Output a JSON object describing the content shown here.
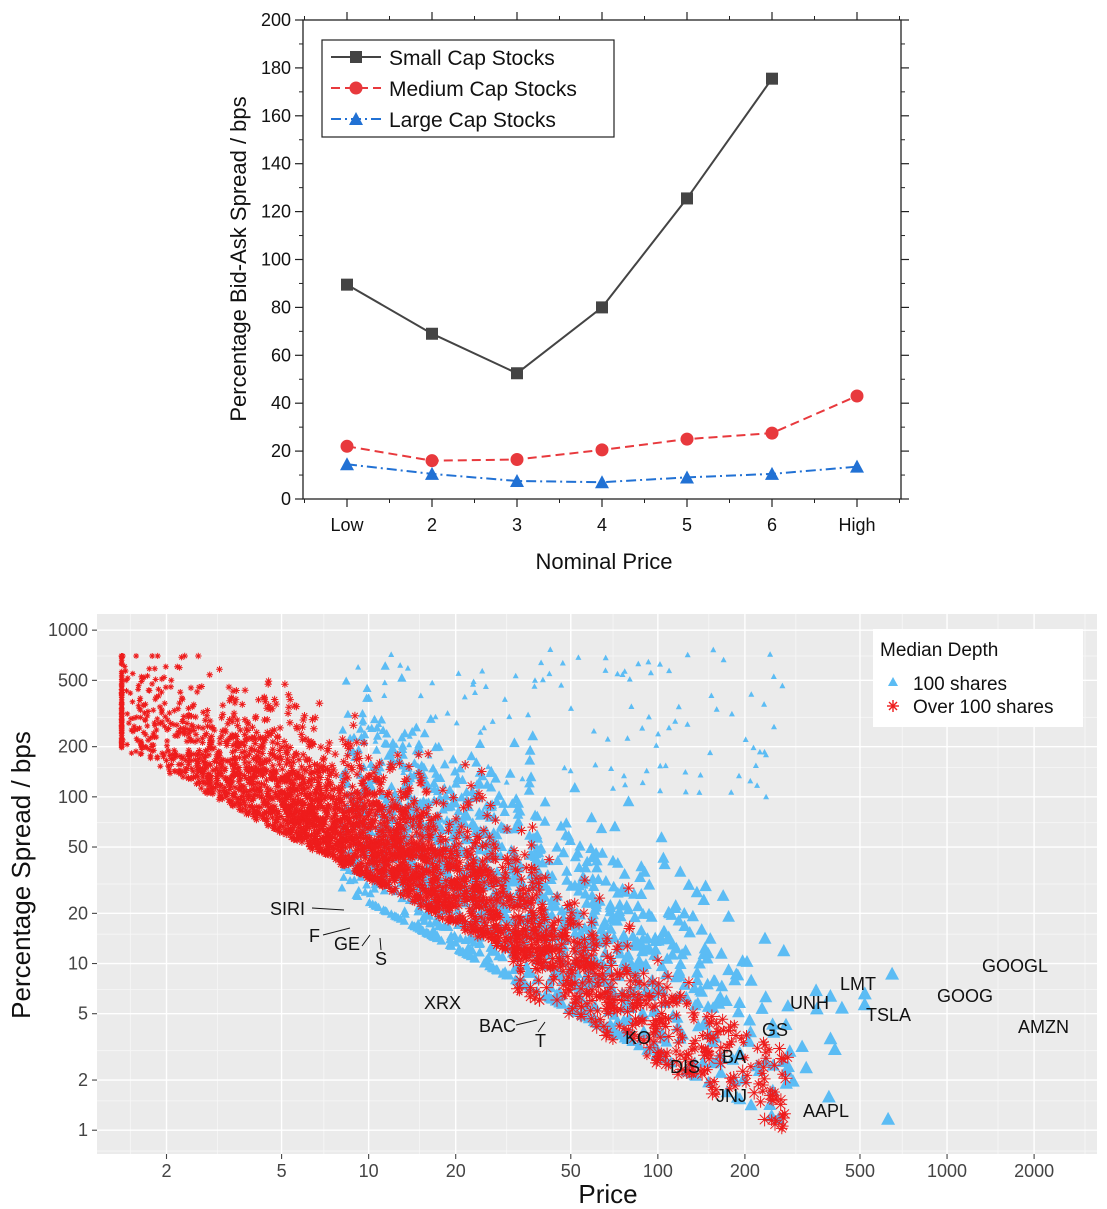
{
  "chart_data": [
    {
      "type": "line",
      "title": "",
      "xlabel": "Nominal Price",
      "ylabel": "Percentage Bid-Ask Spread / bps",
      "categories": [
        "Low",
        "2",
        "3",
        "4",
        "5",
        "6",
        "High"
      ],
      "ylim": [
        0,
        200
      ],
      "yticks": [
        "0",
        "20",
        "40",
        "60",
        "80",
        "100",
        "120",
        "140",
        "160",
        "180",
        "200"
      ],
      "legend_position": "top-left",
      "grid": false,
      "series": [
        {
          "name": "Small Cap Stocks",
          "values": [
            89.5,
            69,
            52.5,
            80,
            125.5,
            175.5,
            null
          ],
          "color": "#444444",
          "marker": "square",
          "line": "solid"
        },
        {
          "name": "Medium Cap Stocks",
          "values": [
            22,
            16,
            16.5,
            20.5,
            25,
            27.5,
            43
          ],
          "color": "#e8393d",
          "marker": "circle",
          "line": "dashed"
        },
        {
          "name": "Large Cap Stocks",
          "values": [
            14.5,
            10.5,
            7.5,
            7,
            9,
            10.5,
            13.5
          ],
          "color": "#2171d4",
          "marker": "triangle",
          "line": "dashdot"
        }
      ]
    },
    {
      "type": "scatter",
      "title": "",
      "xlabel": "Price",
      "ylabel": "Percentage Spread / bps",
      "xscale": "log",
      "yscale": "log",
      "xlim": [
        1.15,
        3300
      ],
      "ylim": [
        0.72,
        1250
      ],
      "xticks": [
        "2",
        "5",
        "10",
        "20",
        "50",
        "100",
        "200",
        "500",
        "1000",
        "2000"
      ],
      "yticks": [
        "1",
        "2",
        "5",
        "10",
        "20",
        "50",
        "100",
        "200",
        "500",
        "1000"
      ],
      "grid": true,
      "legend_title": "Median Depth",
      "legend_position": "top-right",
      "series": [
        {
          "name": "100 shares",
          "color": "#5bbcf4",
          "marker": "triangle",
          "note": "several thousand points, concentrated at price 15–1000 with spread 3–80 bps; sparser upper tail to 800 bps"
        },
        {
          "name": "Over 100 shares",
          "color": "#ee1c1c",
          "marker": "asterisk",
          "note": "several thousand points, concentrated at price 1.4–60 with spread 3–300 bps; lower envelope falls from ~110 bps at price 1.4 to ~1 bps at price 200"
        }
      ],
      "labeled_points": [
        {
          "label": "SIRI",
          "x": 5.5,
          "y": 20
        },
        {
          "label": "F",
          "x": 6.5,
          "y": 16
        },
        {
          "label": "GE",
          "x": 7.5,
          "y": 15
        },
        {
          "label": "S",
          "x": 7.8,
          "y": 14.5
        },
        {
          "label": "XRX",
          "x": 17,
          "y": 6.2
        },
        {
          "label": "BAC",
          "x": 27,
          "y": 4.2
        },
        {
          "label": "T",
          "x": 32,
          "y": 3.8
        },
        {
          "label": "KO",
          "x": 48,
          "y": 3.2
        },
        {
          "label": "DIS",
          "x": 110,
          "y": 2.9
        },
        {
          "label": "BA",
          "x": 165,
          "y": 3.6
        },
        {
          "label": "JNJ",
          "x": 130,
          "y": 2.2
        },
        {
          "label": "GS",
          "x": 205,
          "y": 4.3
        },
        {
          "label": "UNH",
          "x": 250,
          "y": 7.5
        },
        {
          "label": "LMT",
          "x": 420,
          "y": 8
        },
        {
          "label": "TSLA",
          "x": 470,
          "y": 5.5
        },
        {
          "label": "GOOGL",
          "x": 1490,
          "y": 8
        },
        {
          "label": "GOOG",
          "x": 1470,
          "y": 7.8
        },
        {
          "label": "AMZN",
          "x": 3000,
          "y": 5
        },
        {
          "label": "AAPL",
          "x": 280,
          "y": 1
        }
      ]
    }
  ]
}
